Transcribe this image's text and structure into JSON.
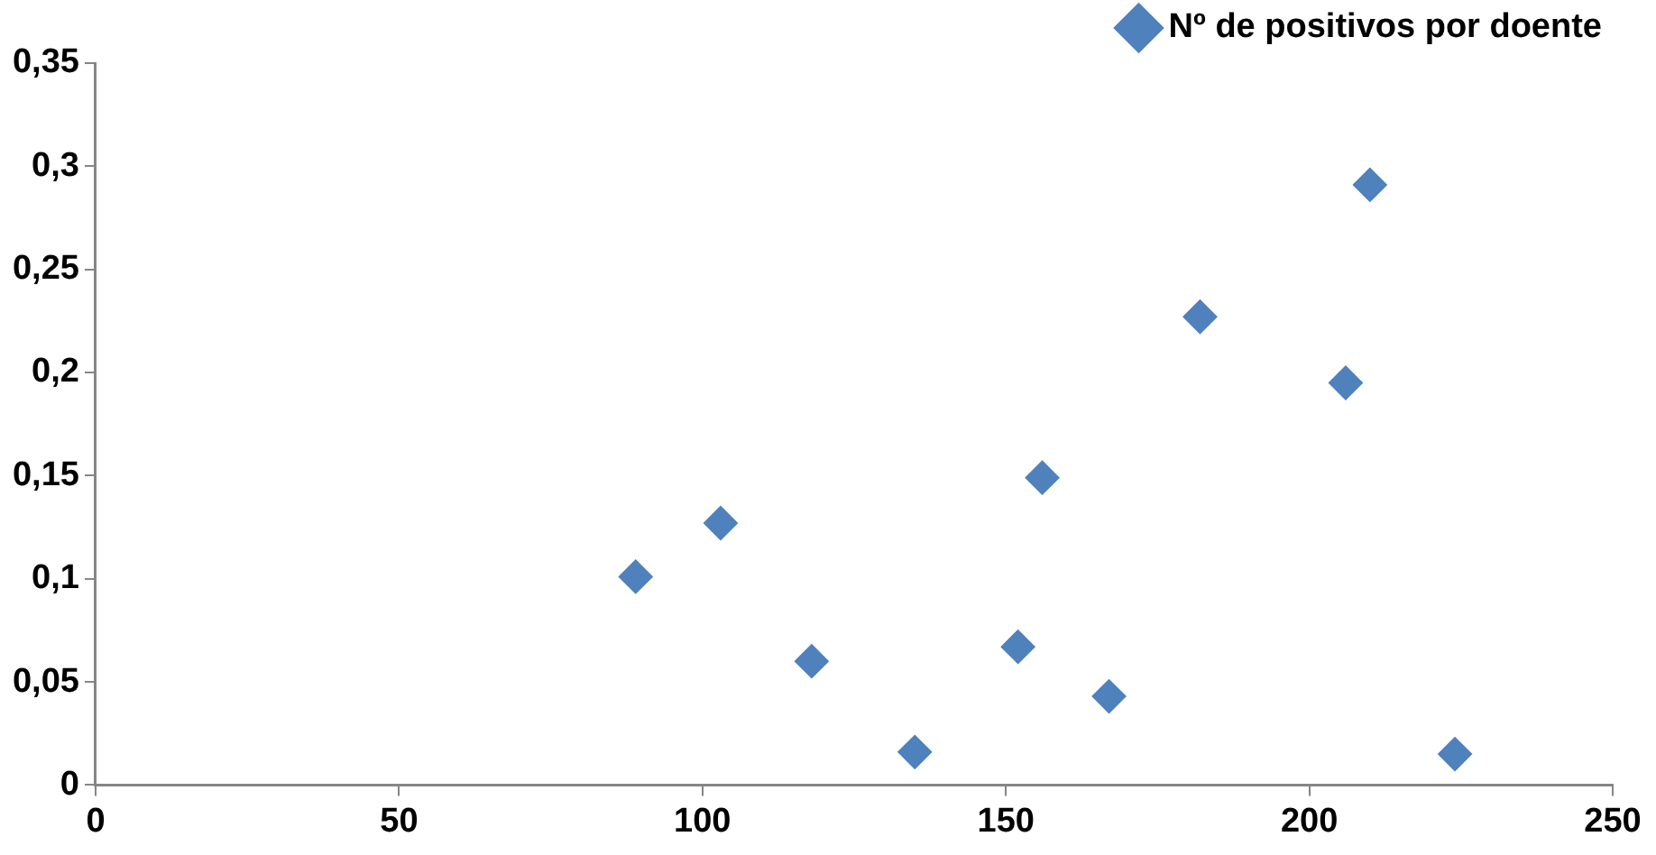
{
  "chart_data": {
    "type": "scatter",
    "marker": "diamond",
    "legend": "top right",
    "grid": false,
    "series": [
      {
        "name": "Nº de positivos por doente",
        "color": "#4f81bd",
        "x": [
          89,
          103,
          118,
          135,
          152,
          156,
          167,
          182,
          206,
          210,
          224
        ],
        "values": [
          0.101,
          0.127,
          0.06,
          0.016,
          0.067,
          0.149,
          0.043,
          0.227,
          0.195,
          0.291,
          0.015
        ]
      }
    ],
    "xlim": [
      0,
      250
    ],
    "xticks": [
      0,
      50,
      100,
      150,
      200,
      250
    ],
    "ylim": [
      0,
      0.35
    ],
    "yticks": [
      0,
      {
        "value": 0.05,
        "label": "0,05"
      },
      {
        "value": 0.1,
        "label": "0,1"
      },
      {
        "value": 0.15,
        "label": "0,15"
      },
      {
        "value": 0.2,
        "label": "0,2"
      },
      {
        "value": 0.25,
        "label": "0,25"
      },
      {
        "value": 0.3,
        "label": "0,3"
      },
      {
        "value": 0.35,
        "label": "0,35"
      }
    ]
  }
}
